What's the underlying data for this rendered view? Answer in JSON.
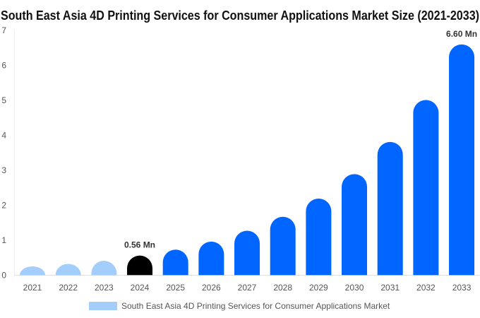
{
  "chart_data": {
    "type": "bar",
    "title": "South East Asia 4D Printing Services for Consumer Applications Market Size (2021-2033)",
    "xlabel": "",
    "ylabel": "",
    "ylim": [
      0,
      7
    ],
    "yticks": [
      "0",
      "1",
      "2",
      "3",
      "4",
      "5",
      "6",
      "7"
    ],
    "grid": false,
    "legend_position": "bottom",
    "categories": [
      "2021",
      "2022",
      "2023",
      "2024",
      "2025",
      "2026",
      "2027",
      "2028",
      "2029",
      "2030",
      "2031",
      "2032",
      "2033"
    ],
    "series": [
      {
        "name": "South East Asia 4D Printing Services for Consumer Applications Market",
        "values": [
          0.25,
          0.32,
          0.41,
          0.56,
          0.73,
          0.96,
          1.27,
          1.67,
          2.19,
          2.89,
          3.81,
          5.01,
          6.6
        ]
      }
    ],
    "data_labels": [
      {
        "category": "2024",
        "text": "0.56 Mn"
      },
      {
        "category": "2033",
        "text": "6.60 Mn"
      }
    ],
    "colors": {
      "historical": "#a3cdfb",
      "base_year": "#000000",
      "forecast": "#0066ff",
      "legend": "#a3cdfb"
    }
  }
}
